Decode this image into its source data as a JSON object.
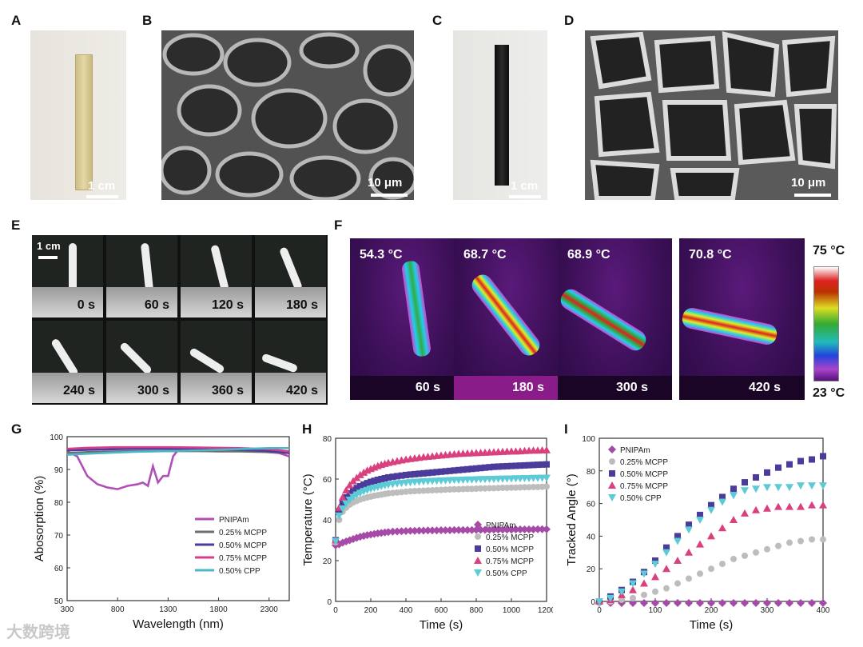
{
  "panel_labels": {
    "A": "A",
    "B": "B",
    "C": "C",
    "D": "D",
    "E": "E",
    "F": "F",
    "G": "G",
    "H": "H",
    "I": "I"
  },
  "scale_bars": {
    "a": "1 cm",
    "b": "10 μm",
    "c": "1 cm",
    "d": "10 μm",
    "e": "1 cm"
  },
  "panel_e": {
    "times": [
      "0 s",
      "60 s",
      "120 s",
      "180 s",
      "240 s",
      "300 s",
      "360 s",
      "420 s"
    ]
  },
  "panel_f": {
    "frames": [
      {
        "temp": "54.3 °C",
        "time": "60 s"
      },
      {
        "temp": "68.7 °C",
        "time": "180 s"
      },
      {
        "temp": "68.9 °C",
        "time": "300 s"
      },
      {
        "temp": "70.8 °C",
        "time": "420 s"
      }
    ],
    "colorbar_max": "75 °C",
    "colorbar_min": "23 °C"
  },
  "watermark": "大数跨境",
  "chart_data": [
    {
      "panel": "G",
      "type": "line",
      "xlabel": "Wavelength (nm)",
      "ylabel": "Abosorption (%)",
      "xlim": [
        300,
        2500
      ],
      "ylim": [
        50,
        100
      ],
      "xticks": [
        "300",
        "800",
        "1300",
        "1800",
        "2300"
      ],
      "yticks": [
        "50",
        "60",
        "70",
        "80",
        "90",
        "100"
      ],
      "legend_position": "bottom-right",
      "series": [
        {
          "name": "PNIPAm",
          "color": "#b04fb8",
          "x": [
            300,
            400,
            500,
            600,
            700,
            800,
            900,
            1000,
            1050,
            1100,
            1150,
            1200,
            1250,
            1300,
            1350,
            1400,
            1500,
            1600,
            1700,
            1800,
            2000,
            2200,
            2400,
            2500
          ],
          "values": [
            95.5,
            94,
            88,
            85.5,
            84.5,
            84,
            85,
            85.5,
            86,
            85,
            91,
            86,
            88,
            88,
            94,
            96,
            96,
            96.5,
            96.5,
            96,
            96,
            95.5,
            95,
            94
          ]
        },
        {
          "name": "0.25% MCPP",
          "color": "#6e6e6e",
          "x": [
            300,
            500,
            800,
            1000,
            1300,
            1600,
            1800,
            2000,
            2300,
            2500
          ],
          "values": [
            95,
            95.3,
            95.5,
            95.6,
            95.6,
            95.6,
            95.5,
            95.5,
            95.3,
            95
          ]
        },
        {
          "name": "0.50% MCPP",
          "color": "#4b3b9b",
          "x": [
            300,
            500,
            800,
            1000,
            1300,
            1600,
            1800,
            2000,
            2300,
            2500
          ],
          "values": [
            95.8,
            96,
            96.2,
            96.3,
            96.3,
            96.2,
            96.1,
            96,
            95.6,
            95
          ]
        },
        {
          "name": "0.75% MCPP",
          "color": "#d43f8d",
          "x": [
            300,
            500,
            800,
            1000,
            1300,
            1600,
            1800,
            2000,
            2300,
            2500
          ],
          "values": [
            96.3,
            96.6,
            96.8,
            96.8,
            96.8,
            96.7,
            96.6,
            96.5,
            96.2,
            95.5
          ]
        },
        {
          "name": "0.50% CPP",
          "color": "#4db6c8",
          "x": [
            300,
            500,
            800,
            1000,
            1300,
            1600,
            1800,
            2000,
            2300,
            2500
          ],
          "values": [
            94.5,
            94.8,
            95.2,
            95.4,
            95.6,
            95.8,
            96,
            96.2,
            96.5,
            96.5
          ]
        }
      ]
    },
    {
      "panel": "H",
      "type": "scatter",
      "xlabel": "Time (s)",
      "ylabel": "Temperature (°C)",
      "xlim": [
        0,
        1200
      ],
      "ylim": [
        0,
        80
      ],
      "xticks": [
        "0",
        "200",
        "400",
        "600",
        "800",
        "1000",
        "1200"
      ],
      "yticks": [
        "0",
        "20",
        "40",
        "60",
        "80"
      ],
      "legend_position": "bottom-right",
      "series": [
        {
          "name": "PNIPAm",
          "marker": "diamond",
          "color": "#a64aa8",
          "x": [
            0,
            20,
            40,
            60,
            80,
            100,
            120,
            140,
            160,
            180,
            200,
            220,
            240,
            260,
            280,
            300,
            325,
            350,
            375,
            400,
            425,
            450,
            475,
            500,
            525,
            550,
            575,
            600,
            625,
            650,
            675,
            700,
            725,
            750,
            775,
            800,
            825,
            850,
            875,
            900,
            925,
            950,
            975,
            1000,
            1025,
            1050,
            1075,
            1100,
            1125,
            1150,
            1175,
            1200
          ],
          "values": [
            27.5,
            28,
            28.8,
            29.4,
            30,
            30.6,
            31.2,
            31.7,
            32.1,
            32.5,
            32.8,
            33.1,
            33.4,
            33.6,
            33.8,
            34,
            34.2,
            34.3,
            34.4,
            34.5,
            34.6,
            34.6,
            34.7,
            34.7,
            34.8,
            34.8,
            34.8,
            34.9,
            34.9,
            34.9,
            35,
            35,
            35,
            35,
            35,
            35.1,
            35.1,
            35.1,
            35.1,
            35.2,
            35.2,
            35.2,
            35.2,
            35.2,
            35.3,
            35.3,
            35.3,
            35.3,
            35.3,
            35.4,
            35.4,
            35.4
          ]
        },
        {
          "name": "0.25% MCPP",
          "marker": "circle",
          "color": "#bdbdbd",
          "x": [
            0,
            20,
            40,
            60,
            80,
            100,
            120,
            140,
            160,
            180,
            200,
            220,
            240,
            260,
            280,
            300,
            325,
            350,
            375,
            400,
            425,
            450,
            475,
            500,
            525,
            550,
            575,
            600,
            625,
            650,
            675,
            700,
            725,
            750,
            775,
            800,
            825,
            850,
            875,
            900,
            925,
            950,
            975,
            1000,
            1025,
            1050,
            1075,
            1100,
            1125,
            1150,
            1175,
            1200
          ],
          "values": [
            29,
            40,
            44,
            46,
            47.5,
            48.5,
            49.3,
            50,
            50.5,
            51,
            51.4,
            51.8,
            52.1,
            52.4,
            52.7,
            53,
            53.2,
            53.4,
            53.6,
            53.8,
            54,
            54.1,
            54.2,
            54.3,
            54.4,
            54.5,
            54.6,
            54.7,
            54.8,
            54.9,
            55,
            55,
            55.1,
            55.2,
            55.2,
            55.3,
            55.4,
            55.4,
            55.5,
            55.5,
            55.6,
            55.7,
            55.7,
            55.8,
            55.8,
            55.9,
            56,
            56,
            56.1,
            56.1,
            56.2,
            56.3
          ]
        },
        {
          "name": "0.50% MCPP",
          "marker": "square",
          "color": "#4b3b9b",
          "x": [
            0,
            20,
            40,
            60,
            80,
            100,
            120,
            140,
            160,
            180,
            200,
            220,
            240,
            260,
            280,
            300,
            325,
            350,
            375,
            400,
            425,
            450,
            475,
            500,
            525,
            550,
            575,
            600,
            625,
            650,
            675,
            700,
            725,
            750,
            775,
            800,
            825,
            850,
            875,
            900,
            925,
            950,
            975,
            1000,
            1025,
            1050,
            1075,
            1100,
            1125,
            1150,
            1175,
            1200
          ],
          "values": [
            30,
            44,
            48,
            51,
            53,
            54.5,
            55.6,
            56.5,
            57.3,
            58,
            58.6,
            59.1,
            59.6,
            60,
            60.4,
            60.8,
            61.1,
            61.4,
            61.7,
            62,
            62.2,
            62.4,
            62.6,
            62.8,
            63,
            63.2,
            63.4,
            63.6,
            63.8,
            64,
            64.2,
            64.4,
            64.6,
            64.8,
            65,
            65.2,
            65.4,
            65.6,
            65.8,
            66,
            66.1,
            66.2,
            66.3,
            66.4,
            66.5,
            66.6,
            66.7,
            66.8,
            66.9,
            67,
            67.1,
            67.2
          ]
        },
        {
          "name": "0.75% MCPP",
          "marker": "triangle-up",
          "color": "#d9407e",
          "x": [
            0,
            20,
            40,
            60,
            80,
            100,
            120,
            140,
            160,
            180,
            200,
            220,
            240,
            260,
            280,
            300,
            325,
            350,
            375,
            400,
            425,
            450,
            475,
            500,
            525,
            550,
            575,
            600,
            625,
            650,
            675,
            700,
            725,
            750,
            775,
            800,
            825,
            850,
            875,
            900,
            925,
            950,
            975,
            1000,
            1025,
            1050,
            1075,
            1100,
            1125,
            1150,
            1175,
            1200
          ],
          "values": [
            30,
            46,
            51,
            54.5,
            57,
            59,
            60.6,
            62,
            63.2,
            64.2,
            65,
            65.7,
            66.4,
            67,
            67.5,
            68,
            68.4,
            68.8,
            69.2,
            69.6,
            69.9,
            70.2,
            70.5,
            70.8,
            71,
            71.2,
            71.4,
            71.6,
            71.8,
            72,
            72.2,
            72.4,
            72.5,
            72.6,
            72.7,
            72.8,
            72.9,
            73,
            73.1,
            73.2,
            73.3,
            73.4,
            73.5,
            73.6,
            73.6,
            73.7,
            73.8,
            73.9,
            74,
            74,
            74.1,
            74.2
          ]
        },
        {
          "name": "0.50% CPP",
          "marker": "triangle-down",
          "color": "#5ccbd6",
          "x": [
            0,
            20,
            40,
            60,
            80,
            100,
            120,
            140,
            160,
            180,
            200,
            220,
            240,
            260,
            280,
            300,
            325,
            350,
            375,
            400,
            425,
            450,
            475,
            500,
            525,
            550,
            575,
            600,
            625,
            650,
            675,
            700,
            725,
            750,
            775,
            800,
            825,
            850,
            875,
            900,
            925,
            950,
            975,
            1000,
            1025,
            1050,
            1075,
            1100,
            1125,
            1150,
            1175,
            1200
          ],
          "values": [
            29.5,
            42,
            45.5,
            48,
            49.8,
            51.2,
            52.3,
            53.2,
            54,
            54.6,
            55.2,
            55.7,
            56.1,
            56.5,
            56.9,
            57.2,
            57.5,
            57.8,
            58,
            58.2,
            58.4,
            58.6,
            58.7,
            58.8,
            58.9,
            59,
            59.1,
            59.2,
            59.3,
            59.4,
            59.5,
            59.5,
            59.6,
            59.7,
            59.7,
            59.8,
            59.9,
            59.9,
            60,
            60,
            60.1,
            60.1,
            60.2,
            60.2,
            60.3,
            60.3,
            60.4,
            60.4,
            60.5,
            60.5,
            60.6,
            60.6
          ]
        }
      ]
    },
    {
      "panel": "I",
      "type": "scatter",
      "xlabel": "Time (s)",
      "ylabel": "Tracked Angle (°)",
      "xlim": [
        0,
        400
      ],
      "ylim": [
        0,
        100
      ],
      "xticks": [
        "0",
        "100",
        "200",
        "300",
        "400"
      ],
      "yticks": [
        "0",
        "20",
        "40",
        "60",
        "80",
        "100"
      ],
      "legend_position": "top-left",
      "series": [
        {
          "name": "PNIPAm",
          "marker": "diamond",
          "color": "#a64aa8",
          "x": [
            0,
            20,
            40,
            60,
            80,
            100,
            120,
            140,
            160,
            180,
            200,
            220,
            240,
            260,
            280,
            300,
            320,
            340,
            360,
            380,
            400
          ],
          "values": [
            -1,
            -1,
            -1,
            -1,
            -1,
            -1,
            -1,
            -1,
            -1,
            -1,
            -1,
            -1,
            -1,
            -1,
            -1,
            -1,
            -1,
            -1,
            -1,
            -1,
            -1
          ]
        },
        {
          "name": "0.25% MCPP",
          "marker": "circle",
          "color": "#bdbdbd",
          "x": [
            0,
            20,
            40,
            60,
            80,
            100,
            120,
            140,
            160,
            180,
            200,
            220,
            240,
            260,
            280,
            300,
            320,
            340,
            360,
            380,
            400
          ],
          "values": [
            -1,
            0,
            1,
            2,
            4,
            6,
            8,
            11,
            14,
            17,
            20,
            23,
            26,
            28,
            30,
            32,
            34,
            36,
            37,
            38,
            38
          ]
        },
        {
          "name": "0.50% MCPP",
          "marker": "square",
          "color": "#4b3b9b",
          "x": [
            0,
            20,
            40,
            60,
            80,
            100,
            120,
            140,
            160,
            180,
            200,
            220,
            240,
            260,
            280,
            300,
            320,
            340,
            360,
            380,
            400
          ],
          "values": [
            0,
            3,
            7,
            12,
            18,
            25,
            33,
            40,
            47,
            53,
            59,
            64,
            69,
            73,
            76,
            79,
            82,
            84,
            86,
            87,
            89
          ]
        },
        {
          "name": "0.75% MCPP",
          "marker": "triangle-up",
          "color": "#d9407e",
          "x": [
            0,
            20,
            40,
            60,
            80,
            100,
            120,
            140,
            160,
            180,
            200,
            220,
            240,
            260,
            280,
            300,
            320,
            340,
            360,
            380,
            400
          ],
          "values": [
            0,
            1,
            4,
            7,
            11,
            15,
            20,
            25,
            30,
            35,
            40,
            45,
            50,
            54,
            56,
            57,
            58,
            58,
            58,
            59,
            59
          ]
        },
        {
          "name": "0.50% CPP",
          "marker": "triangle-down",
          "color": "#5ccbd6",
          "x": [
            0,
            20,
            40,
            60,
            80,
            100,
            120,
            140,
            160,
            180,
            200,
            220,
            240,
            260,
            280,
            300,
            320,
            340,
            360,
            380,
            400
          ],
          "values": [
            0,
            2,
            6,
            11,
            17,
            23,
            30,
            37,
            44,
            50,
            56,
            61,
            65,
            68,
            69,
            70,
            70,
            70,
            71,
            71,
            71
          ]
        }
      ]
    }
  ]
}
